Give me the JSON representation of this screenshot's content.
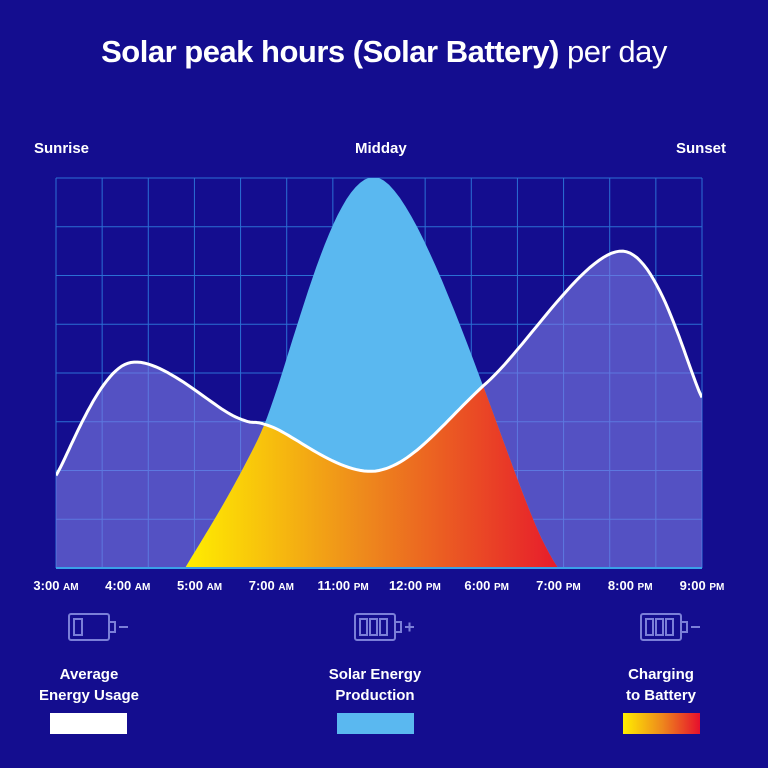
{
  "title": {
    "bold": "Solar peak hours  (Solar Battery)",
    "light": "per day"
  },
  "periods": {
    "sunrise": "Sunrise",
    "midday": "Midday",
    "sunset": "Sunset"
  },
  "chart_data": {
    "type": "area",
    "categories": [
      {
        "time": "3:00",
        "period": "AM"
      },
      {
        "time": "4:00",
        "period": "AM"
      },
      {
        "time": "5:00",
        "period": "AM"
      },
      {
        "time": "7:00",
        "period": "AM"
      },
      {
        "time": "11:00",
        "period": "PM"
      },
      {
        "time": "12:00",
        "period": "PM"
      },
      {
        "time": "6:00",
        "period": "PM"
      },
      {
        "time": "7:00",
        "period": "PM"
      },
      {
        "time": "8:00",
        "period": "PM"
      },
      {
        "time": "9:00",
        "period": "PM"
      }
    ],
    "grid": true,
    "ylim": [
      0,
      8
    ],
    "series": [
      {
        "name": "Average Energy Usage",
        "color": "#ffffff",
        "points": [
          [
            0,
            1.9
          ],
          [
            1,
            4.2
          ],
          [
            2.5,
            3.1
          ],
          [
            3,
            2.9
          ],
          [
            4.5,
            2.0
          ],
          [
            6,
            3.8
          ],
          [
            7.9,
            6.5
          ],
          [
            9,
            3.5
          ]
        ]
      },
      {
        "name": "Solar Energy Production",
        "color": "#5ab8f0",
        "points": [
          [
            1.8,
            0
          ],
          [
            2.8,
            2.6
          ],
          [
            4.5,
            8.0
          ],
          [
            6.8,
            0.5
          ],
          [
            7.3,
            0
          ]
        ]
      },
      {
        "name": "Charging to Battery",
        "gradient": [
          "#ffee00",
          "#e8781f",
          "#e60f2d"
        ],
        "description": "overlap of usage and production"
      }
    ]
  },
  "legend": [
    {
      "label_line1": "Average",
      "label_line2": "Energy Usage",
      "icon": "battery-empty-minus-icon"
    },
    {
      "label_line1": "Solar Energy",
      "label_line2": "Production",
      "icon": "battery-full-plus-icon"
    },
    {
      "label_line1": "Charging",
      "label_line2": "to Battery",
      "icon": "battery-full-minus-icon"
    }
  ]
}
